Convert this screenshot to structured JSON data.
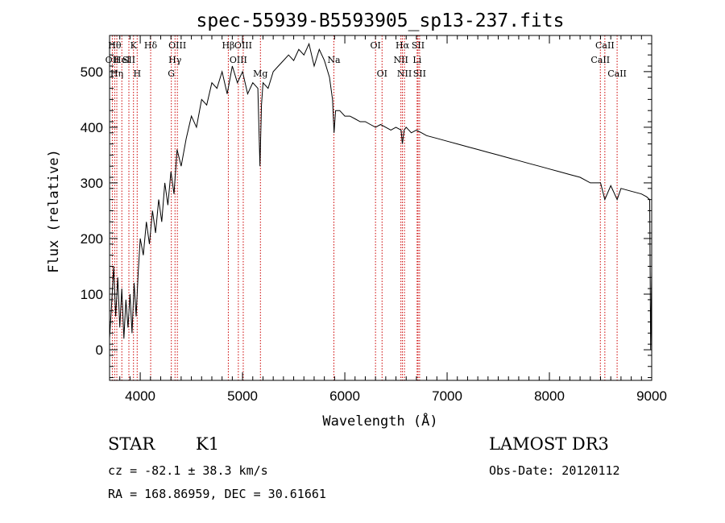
{
  "chart_data": {
    "type": "line",
    "title": "spec-55939-B5593905_sp13-237.fits",
    "xlabel": "Wavelength (Å)",
    "ylabel": "Flux (relative)",
    "xlim": [
      3700,
      9000
    ],
    "ylim": [
      -55,
      565
    ],
    "xticks": [
      4000,
      5000,
      6000,
      7000,
      8000,
      9000
    ],
    "yticks": [
      0,
      100,
      200,
      300,
      400,
      500
    ],
    "series": [
      {
        "x": [
          3700,
          3720,
          3740,
          3760,
          3780,
          3800,
          3820,
          3840,
          3860,
          3880,
          3900,
          3920,
          3940,
          3960,
          3980,
          4000,
          4030,
          4060,
          4090,
          4120,
          4150,
          4180,
          4210,
          4240,
          4270,
          4300,
          4330,
          4360,
          4400,
          4450,
          4500,
          4550,
          4600,
          4650,
          4700,
          4750,
          4800,
          4850,
          4900,
          4950,
          5000,
          5050,
          5100,
          5150,
          5170,
          5185,
          5200,
          5250,
          5300,
          5350,
          5400,
          5450,
          5500,
          5550,
          5600,
          5650,
          5700,
          5750,
          5800,
          5850,
          5880,
          5895,
          5910,
          5950,
          6000,
          6050,
          6100,
          6150,
          6200,
          6250,
          6300,
          6350,
          6400,
          6450,
          6500,
          6550,
          6563,
          6580,
          6600,
          6650,
          6700,
          6750,
          6800,
          6900,
          7000,
          7100,
          7200,
          7300,
          7400,
          7500,
          7600,
          7700,
          7800,
          7900,
          8000,
          8100,
          8200,
          8300,
          8400,
          8500,
          8542,
          8600,
          8662,
          8700,
          8800,
          8900,
          8950,
          8980,
          8990,
          9000
        ],
        "y": [
          20,
          80,
          150,
          60,
          130,
          40,
          110,
          20,
          90,
          40,
          100,
          30,
          120,
          60,
          140,
          200,
          170,
          230,
          190,
          250,
          210,
          270,
          230,
          300,
          260,
          320,
          280,
          360,
          330,
          380,
          420,
          400,
          450,
          440,
          480,
          470,
          500,
          460,
          510,
          480,
          500,
          460,
          480,
          470,
          330,
          440,
          480,
          470,
          500,
          510,
          520,
          530,
          520,
          540,
          530,
          550,
          510,
          540,
          520,
          490,
          450,
          390,
          430,
          430,
          420,
          420,
          415,
          410,
          410,
          405,
          400,
          405,
          400,
          395,
          400,
          395,
          370,
          395,
          400,
          390,
          395,
          390,
          385,
          380,
          375,
          370,
          365,
          360,
          355,
          350,
          345,
          340,
          335,
          330,
          325,
          320,
          315,
          310,
          300,
          300,
          270,
          295,
          270,
          290,
          285,
          280,
          275,
          270,
          0,
          140
        ]
      }
    ],
    "lines": [
      {
        "x": 3750,
        "label": "Hθ",
        "row": 0
      },
      {
        "x": 3727,
        "label": "OII",
        "row": 1
      },
      {
        "x": 3771,
        "label": "Hη",
        "row": 2
      },
      {
        "x": 3820,
        "label": "HeI",
        "row": 1
      },
      {
        "x": 3889,
        "label": "SII",
        "row": 1
      },
      {
        "x": 3934,
        "label": "K",
        "row": 0
      },
      {
        "x": 3970,
        "label": "H",
        "row": 2
      },
      {
        "x": 4102,
        "label": "Hδ",
        "row": 0
      },
      {
        "x": 4304,
        "label": "G",
        "row": 2
      },
      {
        "x": 4340,
        "label": "Hγ",
        "row": 1
      },
      {
        "x": 4363,
        "label": "OIII",
        "row": 0
      },
      {
        "x": 4861,
        "label": "Hβ",
        "row": 0
      },
      {
        "x": 4959,
        "label": "OIII",
        "row": 1
      },
      {
        "x": 5007,
        "label": "OIII",
        "row": 0
      },
      {
        "x": 5175,
        "label": "Mg",
        "row": 2
      },
      {
        "x": 5893,
        "label": "Na",
        "row": 1
      },
      {
        "x": 6300,
        "label": "OI",
        "row": 0
      },
      {
        "x": 6364,
        "label": "OI",
        "row": 2
      },
      {
        "x": 6548,
        "label": "NII",
        "row": 1
      },
      {
        "x": 6563,
        "label": "Hα",
        "row": 0
      },
      {
        "x": 6583,
        "label": "NII",
        "row": 2
      },
      {
        "x": 6707,
        "label": "Li",
        "row": 1
      },
      {
        "x": 6716,
        "label": "SII",
        "row": 0
      },
      {
        "x": 6731,
        "label": "SII",
        "row": 2
      },
      {
        "x": 8498,
        "label": "CaII",
        "row": 1
      },
      {
        "x": 8542,
        "label": "CaII",
        "row": 0
      },
      {
        "x": 8662,
        "label": "CaII",
        "row": 2
      }
    ]
  },
  "info": {
    "class": "STAR",
    "subclass": "K1",
    "survey": "LAMOST DR3",
    "redshift": "cz = -82.1 ± 38.3 km/s",
    "obs_date": "Obs-Date: 20120112",
    "coords": "RA = 168.86959, DEC =  30.61661"
  },
  "colors": {
    "spectrum": "#000000",
    "line_markers": "#cc0000"
  }
}
